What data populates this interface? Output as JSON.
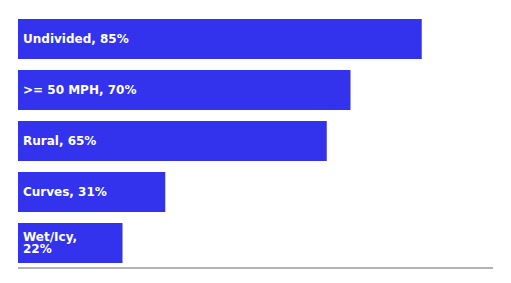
{
  "chart_data": {
    "type": "bar",
    "orientation": "horizontal",
    "categories": [
      "Undivided, 85%",
      ">= 50 MPH, 70%",
      "Rural, 65%",
      "Curves, 31%",
      "Wet/Icy, 22%"
    ],
    "values": [
      85,
      70,
      65,
      31,
      22
    ],
    "color": "#3333EE",
    "xlim": [
      0,
      100
    ],
    "tick_labels": false,
    "grid": false
  }
}
